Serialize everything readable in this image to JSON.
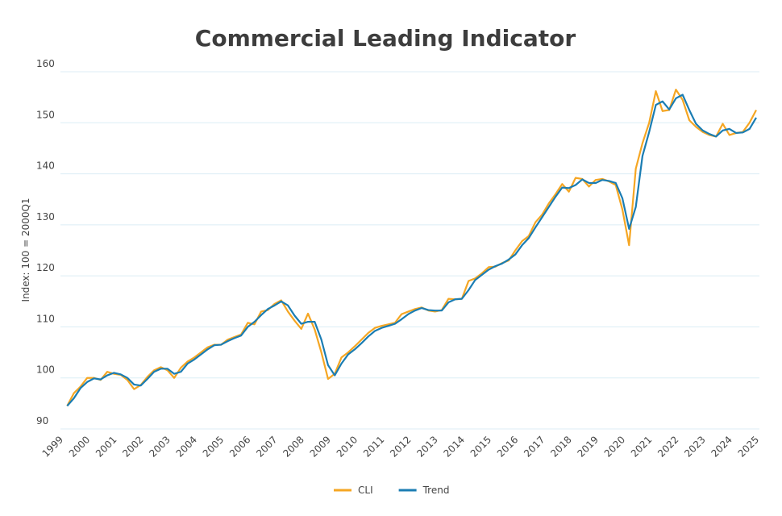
{
  "chart_data": {
    "type": "line",
    "title": "Commercial Leading Indicator",
    "ylabel": "Index: 100 = 2000Q1",
    "x": [
      1999.25,
      1999.5,
      1999.75,
      2000,
      2000.25,
      2000.5,
      2000.75,
      2001,
      2001.25,
      2001.5,
      2001.75,
      2002,
      2002.25,
      2002.5,
      2002.75,
      2003,
      2003.25,
      2003.5,
      2003.75,
      2004,
      2004.25,
      2004.5,
      2004.75,
      2005,
      2005.25,
      2005.5,
      2005.75,
      2006,
      2006.25,
      2006.5,
      2006.75,
      2007,
      2007.25,
      2007.5,
      2007.75,
      2008,
      2008.25,
      2008.5,
      2008.75,
      2009,
      2009.25,
      2009.5,
      2009.75,
      2010,
      2010.25,
      2010.5,
      2010.75,
      2011,
      2011.25,
      2011.5,
      2011.75,
      2012,
      2012.25,
      2012.5,
      2012.75,
      2013,
      2013.25,
      2013.5,
      2013.75,
      2014,
      2014.25,
      2014.5,
      2014.75,
      2015,
      2015.25,
      2015.5,
      2015.75,
      2016,
      2016.25,
      2016.5,
      2016.75,
      2017,
      2017.25,
      2017.5,
      2017.75,
      2018,
      2018.25,
      2018.5,
      2018.75,
      2019,
      2019.25,
      2019.5,
      2019.75,
      2020,
      2020.25,
      2020.5,
      2020.75,
      2021,
      2021.25,
      2021.5,
      2021.75,
      2022,
      2022.25,
      2022.5,
      2022.75,
      2023,
      2023.25,
      2023.5,
      2023.75,
      2024,
      2024.25,
      2024.5,
      2024.75,
      2025
    ],
    "series": [
      {
        "name": "CLI",
        "color": "#f5a623",
        "values": [
          94.5,
          97,
          98.3,
          100,
          100,
          99.6,
          101.2,
          100.8,
          100.6,
          99.6,
          97.8,
          98.6,
          100.2,
          101.5,
          102.1,
          101.5,
          100.0,
          102.0,
          103.2,
          104.0,
          105.0,
          106.0,
          106.5,
          106.5,
          107.5,
          108,
          108.5,
          110.8,
          110.5,
          113.0,
          113.3,
          114.5,
          115.2,
          113,
          111.2,
          109.6,
          112.6,
          109.5,
          105,
          99.8,
          100.8,
          104,
          105,
          106.2,
          107.5,
          108.8,
          109.8,
          110.2,
          110.5,
          110.8,
          112.5,
          113,
          113.5,
          113.8,
          113.2,
          113.0,
          113.3,
          115.5,
          115.4,
          115.5,
          119,
          119.5,
          120.5,
          121.7,
          121.8,
          122.5,
          123,
          125,
          126.8,
          127.8,
          130.5,
          132,
          134.2,
          136,
          138,
          136.5,
          139.2,
          139,
          137.5,
          138.8,
          139,
          138.5,
          137.8,
          133,
          126,
          141,
          146,
          150,
          156.2,
          152.3,
          152.5,
          156.5,
          154.5,
          150.5,
          149.2,
          148.2,
          147.6,
          147.3,
          149.8,
          147.6,
          148,
          148.2,
          150,
          152.5
        ]
      },
      {
        "name": "Trend",
        "color": "#1b7db3",
        "values": [
          94.5,
          96,
          98,
          99.2,
          99.9,
          99.7,
          100.5,
          101,
          100.7,
          100,
          98.7,
          98.5,
          99.8,
          101.2,
          101.8,
          101.8,
          100.8,
          101.2,
          102.8,
          103.6,
          104.6,
          105.6,
          106.4,
          106.5,
          107.2,
          107.8,
          108.3,
          110,
          111,
          112.3,
          113.5,
          114.2,
          115,
          114.2,
          112.2,
          110.6,
          111,
          111,
          107.5,
          102.5,
          100.5,
          102.8,
          104.6,
          105.6,
          106.8,
          108.1,
          109.2,
          109.8,
          110.2,
          110.6,
          111.5,
          112.5,
          113.2,
          113.7,
          113.3,
          113.2,
          113.2,
          114.8,
          115.4,
          115.5,
          117.2,
          119.2,
          120.2,
          121.2,
          121.9,
          122.4,
          123.2,
          124.2,
          126,
          127.4,
          129.5,
          131.5,
          133.5,
          135.5,
          137.3,
          137.2,
          137.8,
          138.9,
          138.2,
          138.2,
          138.8,
          138.6,
          138.2,
          135.2,
          129.2,
          133.5,
          143.5,
          148.2,
          153.5,
          154.2,
          152.6,
          154.8,
          155.5,
          152.5,
          149.8,
          148.5,
          147.8,
          147.3,
          148.5,
          148.8,
          148,
          148.1,
          148.8,
          151
        ]
      }
    ],
    "xlim": [
      1999,
      2025
    ],
    "xticks": [
      1999,
      2000,
      2001,
      2002,
      2003,
      2004,
      2005,
      2006,
      2007,
      2008,
      2009,
      2010,
      2011,
      2012,
      2013,
      2014,
      2015,
      2016,
      2017,
      2018,
      2019,
      2020,
      2021,
      2022,
      2023,
      2024,
      2025
    ],
    "ylim": [
      90,
      160
    ],
    "yticks": [
      90,
      100,
      110,
      120,
      130,
      140,
      150,
      160
    ],
    "grid": true,
    "legend": "bottom"
  }
}
